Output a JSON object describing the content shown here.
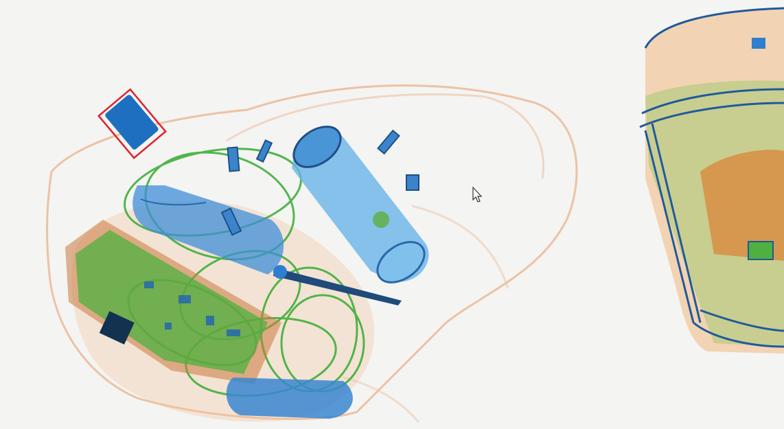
{
  "scene": {
    "type": "x-ray baggage scan",
    "colors": {
      "background": "#f4f4f2",
      "organic": "#e8a474",
      "mixed": "#4caf3c",
      "metal": "#2f7fd0",
      "dense": "#1a3e66",
      "detection_box": "#e0202a"
    },
    "detection": {
      "shape": "rotated-rectangle",
      "color_key": "detection_box"
    },
    "cursor": {
      "icon": "mouse-pointer-icon"
    }
  }
}
